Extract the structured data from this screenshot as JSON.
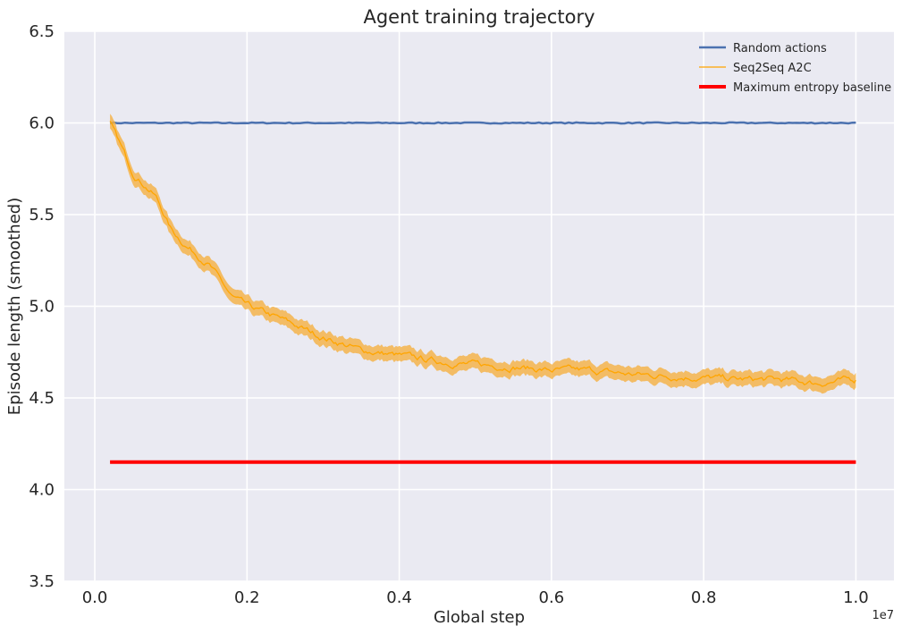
{
  "chart_data": {
    "type": "line",
    "title": "Agent training trajectory",
    "xlabel": "Global step",
    "ylabel": "Episode length (smoothed)",
    "x_offset_label": "1e7",
    "xlim": [
      -0.04,
      1.05
    ],
    "ylim": [
      3.5,
      6.5
    ],
    "xticks": [
      0.0,
      0.2,
      0.4,
      0.6,
      0.8,
      1.0
    ],
    "xtick_labels": [
      "0.0",
      "0.2",
      "0.4",
      "0.6",
      "0.8",
      "1.0"
    ],
    "yticks": [
      3.5,
      4.0,
      4.5,
      5.0,
      5.5,
      6.0,
      6.5
    ],
    "ytick_labels": [
      "3.5",
      "4.0",
      "4.5",
      "5.0",
      "5.5",
      "6.0",
      "6.5"
    ],
    "grid": true,
    "legend_position": "top-right",
    "background": "#eaeaf2",
    "series": [
      {
        "name": "Random actions",
        "color": "#4c72b0",
        "x": [
          0.02,
          0.1,
          0.2,
          0.3,
          0.4,
          0.5,
          0.6,
          0.7,
          0.8,
          0.9,
          1.0
        ],
        "y": [
          6.0,
          6.0,
          6.0,
          6.0,
          6.0,
          6.0,
          6.0,
          6.0,
          6.0,
          6.0,
          6.0
        ]
      },
      {
        "name": "Seq2Seq A2C",
        "color": "#ffa500",
        "band_color": "#f5b041",
        "band_halfwidth": 0.04,
        "x": [
          0.02,
          0.05,
          0.08,
          0.1,
          0.12,
          0.15,
          0.18,
          0.2,
          0.25,
          0.3,
          0.35,
          0.4,
          0.45,
          0.5,
          0.55,
          0.6,
          0.65,
          0.7,
          0.75,
          0.8,
          0.85,
          0.9,
          0.95,
          1.0
        ],
        "y": [
          6.0,
          5.73,
          5.6,
          5.42,
          5.33,
          5.23,
          5.05,
          5.0,
          4.92,
          4.83,
          4.76,
          4.73,
          4.7,
          4.68,
          4.67,
          4.65,
          4.65,
          4.63,
          4.62,
          4.61,
          4.6,
          4.6,
          4.58,
          4.6
        ]
      },
      {
        "name": "Maximum entropy baseline",
        "color": "#ff0000",
        "x": [
          0.02,
          1.0
        ],
        "y": [
          4.15,
          4.15
        ]
      }
    ]
  }
}
